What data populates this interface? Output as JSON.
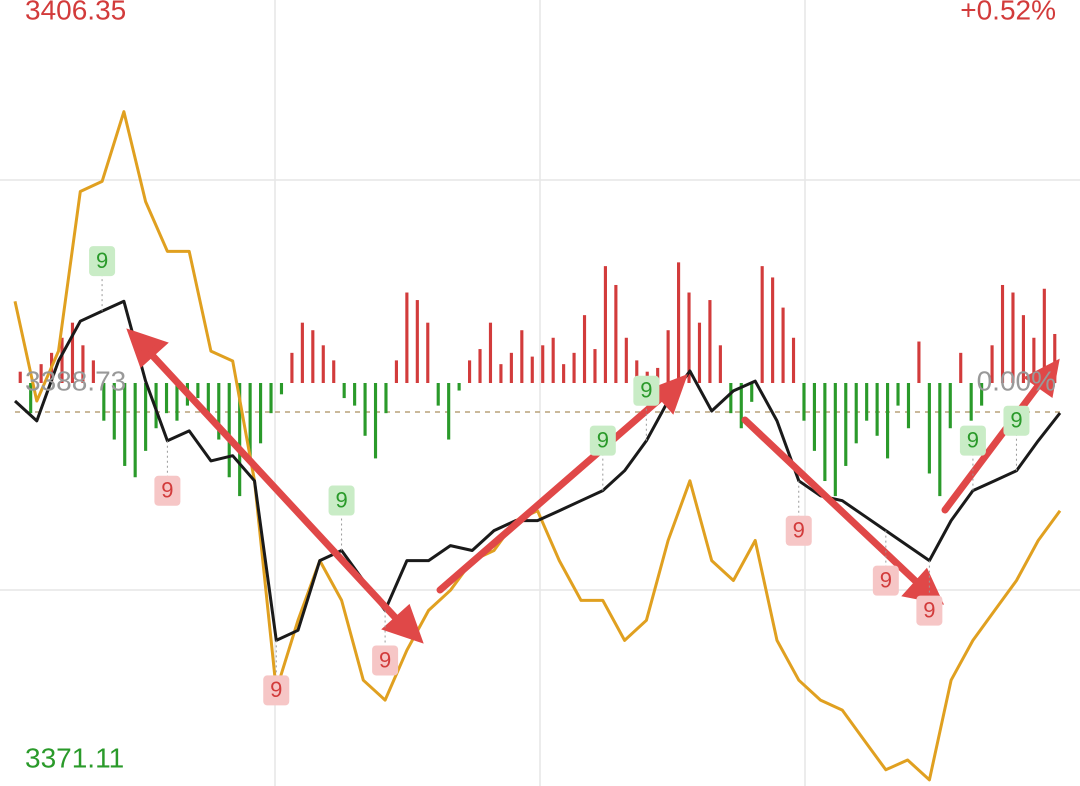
{
  "chart_data": [
    {
      "type": "line",
      "x": [
        0,
        5,
        10,
        15,
        20,
        25,
        30,
        35,
        40,
        45,
        50,
        55,
        60,
        65,
        70,
        75,
        80,
        85,
        90,
        95,
        100,
        105,
        110,
        115,
        120,
        125,
        130,
        135,
        140,
        145,
        150,
        155,
        160,
        165,
        170,
        175,
        180,
        185,
        190,
        195,
        200,
        205,
        210,
        215,
        220,
        225,
        230,
        235,
        240
      ],
      "xlim": [
        0,
        240
      ],
      "series": [
        {
          "name": "index",
          "color": "#1a1a1a",
          "values": [
            3387.89,
            3386.96,
            3389.76,
            3391.62,
            3392.09,
            3392.55,
            3388.82,
            3386.03,
            3386.49,
            3385.09,
            3385.33,
            3384.16,
            3376.7,
            3377.17,
            3380.43,
            3380.9,
            3379.5,
            3378.1,
            3380.43,
            3380.43,
            3381.13,
            3380.9,
            3381.83,
            3382.3,
            3382.3,
            3382.76,
            3383.23,
            3383.7,
            3384.63,
            3386.03,
            3387.89,
            3389.29,
            3387.42,
            3388.36,
            3388.82,
            3386.96,
            3384.16,
            3383.46,
            3383.23,
            3382.53,
            3381.83,
            3381.13,
            3380.43,
            3382.3,
            3383.7,
            3384.16,
            3384.63,
            3386.03,
            3387.33
          ]
        },
        {
          "name": "avg",
          "color": "#e0a020",
          "values": [
            3392.55,
            3387.89,
            3390.22,
            3397.68,
            3398.15,
            3401.41,
            3397.21,
            3394.88,
            3394.88,
            3390.22,
            3389.76,
            3384.16,
            3374.37,
            3377.64,
            3380.43,
            3378.57,
            3374.84,
            3373.91,
            3376.24,
            3378.1,
            3379.04,
            3380.43,
            3380.9,
            3382.3,
            3382.76,
            3380.43,
            3378.57,
            3378.57,
            3376.7,
            3377.64,
            3381.37,
            3384.16,
            3380.43,
            3379.5,
            3381.37,
            3376.7,
            3374.84,
            3373.91,
            3373.44,
            3372.04,
            3370.65,
            3371.11,
            3370.18,
            3374.84,
            3376.7,
            3378.1,
            3379.5,
            3381.37,
            3382.76
          ]
        }
      ],
      "ylim": [
        3371.11,
        3406.35
      ],
      "yticks": [
        3406.35,
        3388.73,
        3371.11
      ],
      "y2lim": [
        -0.52,
        0.52
      ],
      "y2ticks": [
        {
          "value": 0.52,
          "label": "+0.52%"
        },
        {
          "value": 0,
          "label": "0.00%"
        }
      ],
      "up_color": "#d23b3b",
      "down_color": "#2a9a2a",
      "flat_color": "#999999",
      "annotations": [
        {
          "text": "9",
          "at": 4,
          "side": "above",
          "color": "green"
        },
        {
          "text": "9",
          "at": 7,
          "side": "below",
          "color": "red"
        },
        {
          "text": "9",
          "at": 12,
          "side": "below",
          "color": "red"
        },
        {
          "text": "9",
          "at": 15,
          "side": "above",
          "color": "green"
        },
        {
          "text": "9",
          "at": 17,
          "side": "below",
          "color": "red"
        },
        {
          "text": "9",
          "at": 27,
          "side": "above",
          "color": "green"
        },
        {
          "text": "9",
          "at": 29,
          "side": "above",
          "color": "green"
        },
        {
          "text": "9",
          "at": 36,
          "side": "below",
          "color": "red"
        },
        {
          "text": "9",
          "at": 40,
          "side": "below",
          "color": "red"
        },
        {
          "text": "9",
          "at": 42,
          "side": "below",
          "color": "red"
        },
        {
          "text": "9",
          "at": 44,
          "side": "above",
          "color": "green"
        },
        {
          "text": "9",
          "at": 46,
          "side": "above",
          "color": "green"
        }
      ]
    },
    {
      "type": "bar",
      "values": [
        0.3,
        -0.8,
        0.5,
        0.8,
        1.2,
        1.6,
        1.0,
        0.6,
        -1.0,
        -1.5,
        -2.2,
        -2.5,
        -1.8,
        -1.2,
        -0.8,
        -1.0,
        -0.6,
        -0.4,
        -0.8,
        -1.5,
        -2.5,
        -3.0,
        -2.0,
        -1.6,
        -0.8,
        -0.3,
        0.8,
        1.6,
        1.4,
        1.0,
        0.6,
        -0.4,
        -0.6,
        -1.4,
        -2.0,
        -0.8,
        0.6,
        2.4,
        2.2,
        1.6,
        -0.6,
        -1.5,
        -0.2,
        0.6,
        0.9,
        1.6,
        0.5,
        0.8,
        1.4,
        0.7,
        1.0,
        1.2,
        0.5,
        0.8,
        1.8,
        0.9,
        3.1,
        2.6,
        1.2,
        0.6,
        0.3,
        0.4,
        1.4,
        3.2,
        2.4,
        1.6,
        2.2,
        1.0,
        -0.8,
        -1.2,
        -0.5,
        3.1,
        2.8,
        2.0,
        1.2,
        -1.0,
        -1.8,
        -2.6,
        -3.0,
        -2.2,
        -1.6,
        -1.0,
        -1.4,
        -2.0,
        -0.6,
        -1.2,
        1.1,
        -2.4,
        -3.0,
        -1.2,
        0.8,
        -1.0,
        -0.6,
        1.0,
        2.6,
        2.4,
        1.8,
        1.2,
        2.5,
        1.3
      ],
      "ylim": [
        -10,
        10
      ],
      "up_color": "#d23b3b",
      "down_color": "#2a9a2a"
    }
  ]
}
